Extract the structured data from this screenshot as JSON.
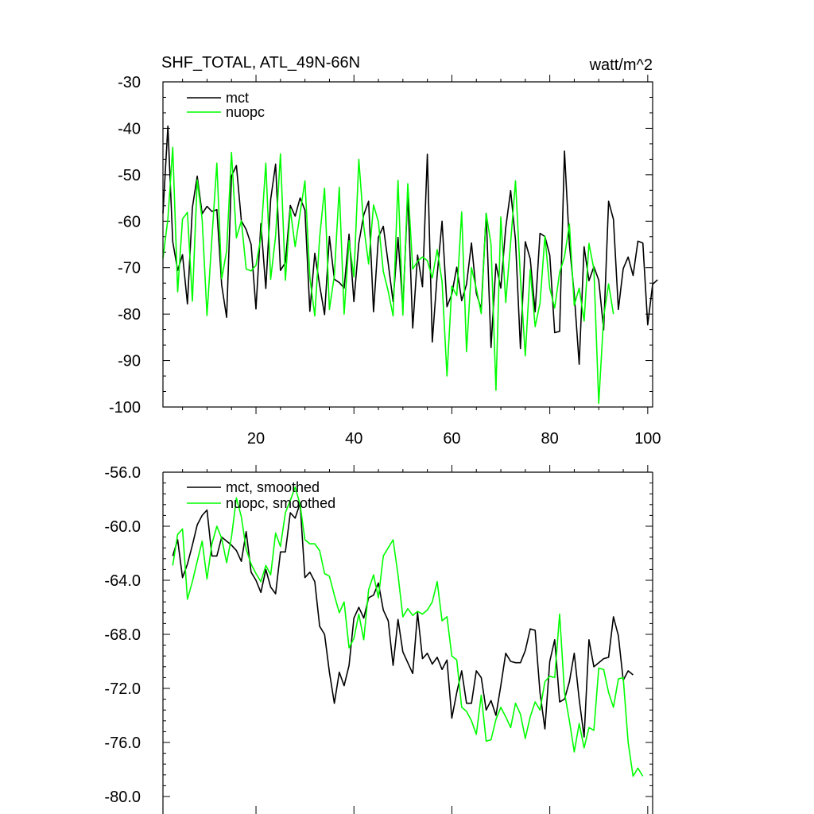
{
  "chart_data": [
    {
      "type": "line",
      "title_left": "SHF_TOTAL, ATL_49N-66N",
      "title_right": "watt/m^2",
      "xlim": [
        1,
        101
      ],
      "ylim": [
        -100,
        -30
      ],
      "x_ticks": [
        20,
        40,
        60,
        80,
        100
      ],
      "x_tick_labels": [
        "20",
        "40",
        "60",
        "80",
        "100"
      ],
      "y_ticks": [
        -30,
        -40,
        -50,
        -60,
        -70,
        -80,
        -90,
        -100
      ],
      "y_tick_labels": [
        "-30",
        "-40",
        "-50",
        "-60",
        "-70",
        "-80",
        "-90",
        "-100"
      ],
      "legend_position": "top-left",
      "series": [
        {
          "name": "mct",
          "color": "#000000",
          "x_start": 1,
          "values": [
            -58.3,
            -39.5,
            -64.4,
            -70.6,
            -67.2,
            -77.8,
            -57.1,
            -50.3,
            -58.4,
            -56.8,
            -57.9,
            -57.5,
            -73.8,
            -80.7,
            -50.3,
            -48.0,
            -59.9,
            -61.8,
            -65.0,
            -78.9,
            -60.5,
            -74.5,
            -55.3,
            -47.7,
            -70.6,
            -68.9,
            -56.6,
            -58.9,
            -55.0,
            -57.6,
            -79.4,
            -66.9,
            -73.8,
            -80.1,
            -63.3,
            -72.5,
            -73.2,
            -74.4,
            -62.8,
            -77.3,
            -64.7,
            -58.6,
            -55.7,
            -79.5,
            -63.5,
            -61.1,
            -69.1,
            -77.3,
            -63.5,
            -78.9,
            -54.1,
            -83.0,
            -67.3,
            -74.1,
            -45.6,
            -86.0,
            -71.5,
            -60.0,
            -78.4,
            -75.7,
            -69.9,
            -77.1,
            -73.6,
            -64.7,
            -75.5,
            -78.9,
            -58.3,
            -87.2,
            -69.2,
            -74.4,
            -61.4,
            -53.4,
            -64.1,
            -87.4,
            -64.4,
            -68.1,
            -79.5,
            -62.6,
            -63.3,
            -67.3,
            -84.0,
            -83.7,
            -44.9,
            -65.0,
            -75.7,
            -90.8,
            -65.5,
            -72.8,
            -69.8,
            -72.7,
            -83.4,
            -55.7,
            -59.6,
            -79.0,
            -70.2,
            -67.7,
            -71.7,
            -64.3,
            -64.7,
            -82.3,
            -73.6,
            -72.6
          ]
        },
        {
          "name": "nuopc",
          "color": "#00ff00",
          "x_start": 1,
          "values": [
            -68.0,
            -59.5,
            -44.1,
            -75.2,
            -59.5,
            -58.1,
            -77.2,
            -51.1,
            -59.6,
            -80.3,
            -63.6,
            -47.5,
            -72.4,
            -66.4,
            -45.2,
            -63.6,
            -59.9,
            -70.3,
            -70.7,
            -69.5,
            -63.5,
            -47.5,
            -72.5,
            -63.2,
            -45.5,
            -72.7,
            -57.4,
            -65.5,
            -58.3,
            -51.3,
            -72.1,
            -80.4,
            -63.5,
            -52.9,
            -79.0,
            -71.7,
            -52.7,
            -80.0,
            -64.2,
            -72.0,
            -46.7,
            -61.1,
            -69.2,
            -56.5,
            -60.1,
            -70.8,
            -75.1,
            -80.4,
            -51.2,
            -80.2,
            -51.9,
            -70.3,
            -68.6,
            -67.7,
            -68.5,
            -72.2,
            -66.1,
            -73.0,
            -93.3,
            -74.0,
            -76.0,
            -58.0,
            -88.1,
            -70.0,
            -74.5,
            -79.9,
            -58.3,
            -65.0,
            -96.4,
            -59.1,
            -77.5,
            -64.5,
            -51.3,
            -72.2,
            -89.0,
            -70.4,
            -82.7,
            -77.7,
            -63.2,
            -74.4,
            -78.7,
            -71.0,
            -67.7,
            -60.6,
            -78.1,
            -74.4,
            -81.5,
            -64.8,
            -70.3,
            -99.2,
            -80.6,
            -73.5,
            -80.0
          ]
        }
      ]
    },
    {
      "type": "line",
      "xlim": [
        1,
        101
      ],
      "ylim": [
        -80,
        -56
      ],
      "x_ticks": [
        20,
        40,
        60,
        80,
        100
      ],
      "y_ticks": [
        -56,
        -60,
        -64,
        -68,
        -72,
        -76,
        -80
      ],
      "y_tick_labels": [
        "-56.0",
        "-60.0",
        "-64.0",
        "-68.0",
        "-72.0",
        "-76.0",
        "-80.0"
      ],
      "legend_position": "top-left",
      "series": [
        {
          "name": "mct, smoothed",
          "color": "#000000",
          "x_start": 3,
          "values": [
            -62.2,
            -61.0,
            -63.8,
            -62.8,
            -61.4,
            -59.9,
            -59.2,
            -58.8,
            -62.2,
            -62.2,
            -60.8,
            -61.1,
            -61.4,
            -61.8,
            -62.6,
            -60.4,
            -63.4,
            -64.0,
            -64.9,
            -63.2,
            -64.5,
            -65.0,
            -61.9,
            -61.9,
            -59.0,
            -59.4,
            -58.3,
            -63.8,
            -63.4,
            -64.1,
            -67.4,
            -68.0,
            -70.8,
            -73.1,
            -70.8,
            -71.8,
            -70.3,
            -66.8,
            -66.0,
            -66.8,
            -65.3,
            -65.1,
            -64.2,
            -66.2,
            -67.0,
            -70.3,
            -66.9,
            -69.3,
            -70.1,
            -70.9,
            -66.4,
            -69.8,
            -69.4,
            -70.2,
            -69.7,
            -70.6,
            -69.9,
            -74.2,
            -72.3,
            -70.7,
            -73.1,
            -73.1,
            -70.7,
            -71.2,
            -73.6,
            -72.9,
            -74.0,
            -71.8,
            -69.4,
            -70.0,
            -70.1,
            -70.1,
            -69.2,
            -67.6,
            -67.7,
            -72.3,
            -75.0,
            -70.0,
            -68.4,
            -73.0,
            -72.8,
            -71.5,
            -69.4,
            -72.8,
            -75.6,
            -68.4,
            -70.4,
            -70.1,
            -69.8,
            -69.7,
            -66.7,
            -68.1,
            -71.4,
            -70.7,
            -71.0
          ]
        },
        {
          "name": "nuopc, smoothed",
          "color": "#00ff00",
          "x_start": 3,
          "values": [
            -62.9,
            -60.6,
            -60.2,
            -65.4,
            -64.1,
            -62.6,
            -61.1,
            -63.9,
            -61.3,
            -60.0,
            -60.9,
            -62.7,
            -60.8,
            -57.9,
            -59.3,
            -61.7,
            -62.8,
            -63.5,
            -64.1,
            -62.9,
            -63.6,
            -60.5,
            -61.5,
            -59.0,
            -58.1,
            -57.1,
            -58.4,
            -61.0,
            -61.3,
            -61.3,
            -61.8,
            -63.5,
            -63.7,
            -65.1,
            -66.4,
            -65.6,
            -69.0,
            -68.3,
            -66.5,
            -68.4,
            -64.7,
            -63.6,
            -65.3,
            -62.2,
            -61.6,
            -61.0,
            -63.6,
            -66.7,
            -66.1,
            -66.6,
            -66.3,
            -66.5,
            -66.2,
            -65.6,
            -64.1,
            -67.0,
            -66.7,
            -69.6,
            -69.9,
            -73.4,
            -73.7,
            -74.4,
            -75.4,
            -72.5,
            -75.9,
            -75.8,
            -74.3,
            -73.4,
            -74.1,
            -74.9,
            -73.1,
            -73.9,
            -75.7,
            -74.1,
            -73.0,
            -73.6,
            -71.5,
            -71.1,
            -71.2,
            -66.5,
            -72.3,
            -74.4,
            -76.7,
            -74.6,
            -76.4,
            -74.9,
            -75.1,
            -70.5,
            -70.6,
            -72.3,
            -73.4,
            -71.3,
            -71.2,
            -76.0,
            -78.5,
            -77.9,
            -78.5
          ]
        }
      ]
    }
  ]
}
